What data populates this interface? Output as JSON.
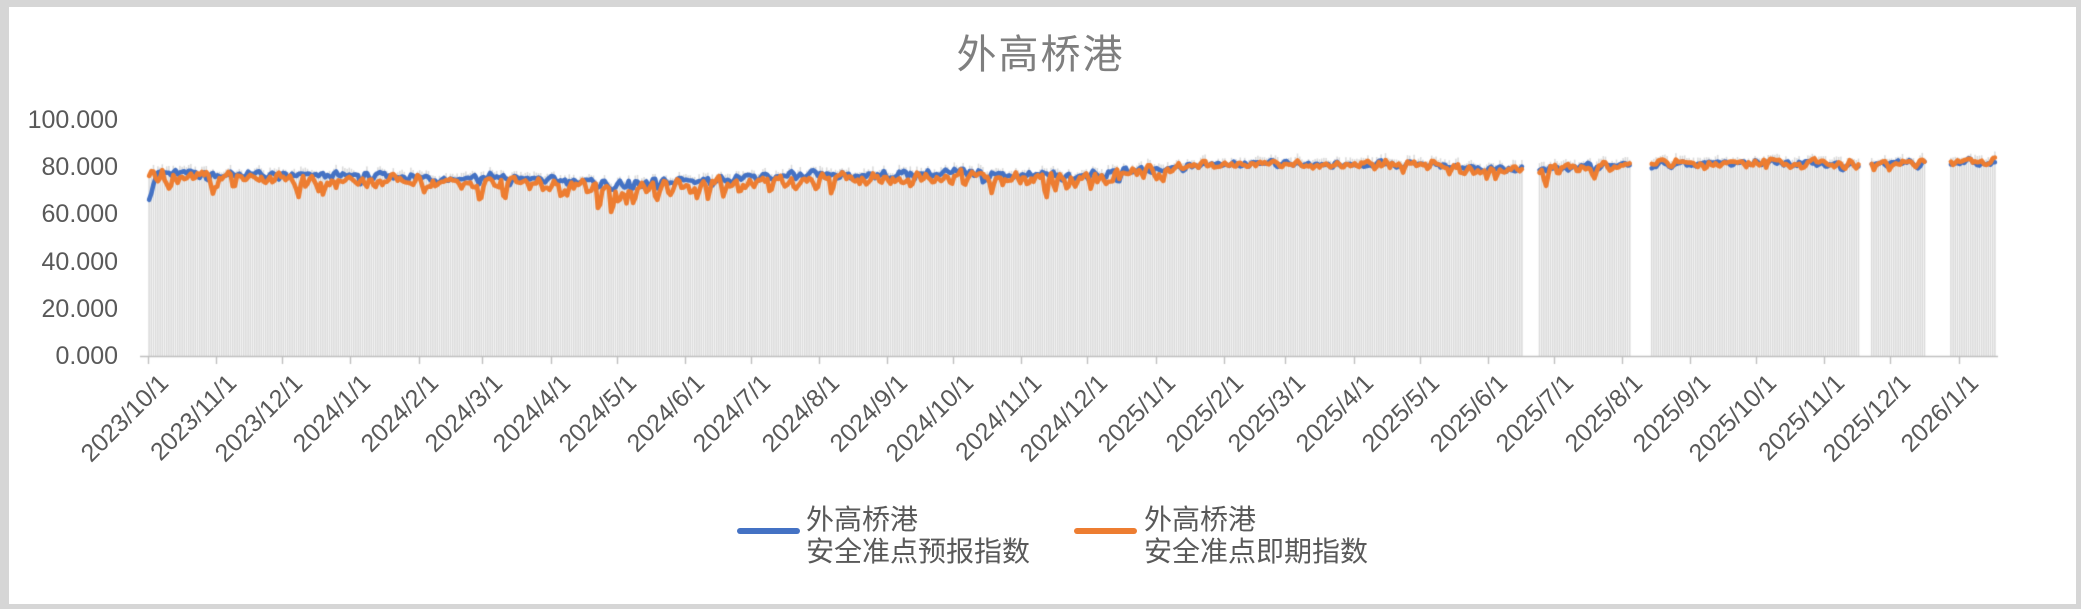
{
  "chart": {
    "title": "外高桥港",
    "legend": [
      {
        "line1": "外高桥港",
        "line2": "安全准点预报指数",
        "color": "#4472C4"
      },
      {
        "line1": "外高桥港",
        "line2": "安全准点即期指数",
        "color": "#ED7D31"
      }
    ]
  },
  "chart_data": {
    "type": "line",
    "title": "外高桥港",
    "xlabel": "",
    "ylabel": "",
    "ylim": [
      0,
      100
    ],
    "ytick_values": [
      0,
      20,
      40,
      60,
      80,
      100
    ],
    "ytick_labels": [
      "0.000",
      "20.000",
      "40.000",
      "60.000",
      "80.000",
      "100.000"
    ],
    "grid": false,
    "legend_position": "bottom",
    "x_start": "2023/10/1",
    "x_end": "2026/1/17",
    "x_resolution": "daily",
    "axis_color": "#BFBFBF",
    "label_color": "#595959",
    "background_bars": {
      "name": "daily-columns",
      "color": "#DADADA",
      "behavior": "light gray column per day rising to just above the line values"
    },
    "series": [
      {
        "name": "外高桥港 安全准点预报指数",
        "color": "#4472C4"
      },
      {
        "name": "外高桥港 安全准点即期指数",
        "color": "#ED7D31"
      }
    ],
    "months": [
      {
        "label": "2023/10/1",
        "days": 31,
        "forecast": 77.5,
        "spot": 77.0,
        "forecast_amp": 2.2,
        "spot_amp": 3.4,
        "forecast_dip": 5,
        "spot_dip": 9
      },
      {
        "label": "2023/11/1",
        "days": 30,
        "forecast": 77.0,
        "spot": 76.0,
        "forecast_amp": 2.2,
        "spot_amp": 3.4,
        "forecast_dip": 4,
        "spot_dip": 9
      },
      {
        "label": "2023/12/1",
        "days": 31,
        "forecast": 76.5,
        "spot": 75.0,
        "forecast_amp": 2.2,
        "spot_amp": 3.6,
        "forecast_dip": 4,
        "spot_dip": 10
      },
      {
        "label": "2024/1/1",
        "days": 31,
        "forecast": 76.5,
        "spot": 74.5,
        "forecast_amp": 2.2,
        "spot_amp": 3.6,
        "forecast_dip": 4,
        "spot_dip": 10
      },
      {
        "label": "2024/2/1",
        "days": 29,
        "forecast": 75.5,
        "spot": 73.5,
        "forecast_amp": 2.3,
        "spot_amp": 3.8,
        "forecast_dip": 4,
        "spot_dip": 12
      },
      {
        "label": "2024/3/1",
        "days": 31,
        "forecast": 76.0,
        "spot": 74.5,
        "forecast_amp": 2.2,
        "spot_amp": 3.6,
        "forecast_dip": 4,
        "spot_dip": 11
      },
      {
        "label": "2024/4/1",
        "days": 30,
        "forecast": 74.5,
        "spot": 71.5,
        "forecast_amp": 2.4,
        "spot_amp": 3.8,
        "forecast_dip": 5,
        "spot_dip": 12
      },
      {
        "label": "2024/5/1",
        "days": 31,
        "forecast": 72.5,
        "spot": 70.0,
        "forecast_amp": 2.4,
        "spot_amp": 3.8,
        "forecast_dip": 5,
        "spot_dip": 11
      },
      {
        "label": "2024/6/1",
        "days": 30,
        "forecast": 74.5,
        "spot": 72.5,
        "forecast_amp": 2.2,
        "spot_amp": 3.5,
        "forecast_dip": 4,
        "spot_dip": 9
      },
      {
        "label": "2024/7/1",
        "days": 31,
        "forecast": 76.0,
        "spot": 74.0,
        "forecast_amp": 2.2,
        "spot_amp": 3.4,
        "forecast_dip": 4,
        "spot_dip": 9
      },
      {
        "label": "2024/8/1",
        "days": 31,
        "forecast": 76.5,
        "spot": 75.0,
        "forecast_amp": 2.2,
        "spot_amp": 3.4,
        "forecast_dip": 4,
        "spot_dip": 9
      },
      {
        "label": "2024/9/1",
        "days": 30,
        "forecast": 77.0,
        "spot": 75.5,
        "forecast_amp": 2.2,
        "spot_amp": 3.4,
        "forecast_dip": 4,
        "spot_dip": 10
      },
      {
        "label": "2024/10/1",
        "days": 31,
        "forecast": 77.5,
        "spot": 76.0,
        "forecast_amp": 2.2,
        "spot_amp": 3.4,
        "forecast_dip": 4,
        "spot_dip": 10
      },
      {
        "label": "2024/11/1",
        "days": 30,
        "forecast": 77.0,
        "spot": 75.0,
        "forecast_amp": 2.2,
        "spot_amp": 3.5,
        "forecast_dip": 4,
        "spot_dip": 10
      },
      {
        "label": "2024/12/1",
        "days": 31,
        "forecast": 76.0,
        "spot": 74.5,
        "forecast_amp": 2.6,
        "spot_amp": 3.6,
        "forecast_dip": 5,
        "spot_dip": 10
      },
      {
        "label": "2025/1/1",
        "days": 31,
        "forecast": 79.5,
        "spot": 79.5,
        "forecast_amp": 1.7,
        "spot_amp": 2.0,
        "forecast_dip": 3,
        "spot_dip": 5
      },
      {
        "label": "2025/2/1",
        "days": 28,
        "forecast": 81.5,
        "spot": 81.5,
        "forecast_amp": 1.4,
        "spot_amp": 1.7,
        "forecast_dip": 2,
        "spot_dip": 3
      },
      {
        "label": "2025/3/1",
        "days": 31,
        "forecast": 81.5,
        "spot": 81.5,
        "forecast_amp": 1.4,
        "spot_amp": 1.7,
        "forecast_dip": 2,
        "spot_dip": 3
      },
      {
        "label": "2025/4/1",
        "days": 30,
        "forecast": 81.0,
        "spot": 81.0,
        "forecast_amp": 1.5,
        "spot_amp": 1.8,
        "forecast_dip": 3,
        "spot_dip": 4
      },
      {
        "label": "2025/5/1",
        "days": 31,
        "forecast": 81.5,
        "spot": 81.5,
        "forecast_amp": 1.5,
        "spot_amp": 1.8,
        "forecast_dip": 3,
        "spot_dip": 6
      },
      {
        "label": "2025/6/1",
        "days": 30,
        "forecast": 79.0,
        "spot": 78.5,
        "forecast_amp": 1.8,
        "spot_amp": 2.2,
        "forecast_dip": 3,
        "spot_dip": 6
      },
      {
        "label": "2025/7/1",
        "days": 31,
        "forecast": 79.5,
        "spot": 79.0,
        "forecast_amp": 1.8,
        "spot_amp": 2.2,
        "forecast_dip": 4,
        "spot_dip": 6
      },
      {
        "label": "2025/8/1",
        "days": 31,
        "forecast": 81.0,
        "spot": 81.5,
        "forecast_amp": 1.5,
        "spot_amp": 1.8,
        "forecast_dip": 2,
        "spot_dip": 3
      },
      {
        "label": "2025/9/1",
        "days": 30,
        "forecast": 81.5,
        "spot": 82.0,
        "forecast_amp": 1.4,
        "spot_amp": 1.6,
        "forecast_dip": 2,
        "spot_dip": 3
      },
      {
        "label": "2025/10/1",
        "days": 31,
        "forecast": 82.0,
        "spot": 82.0,
        "forecast_amp": 1.4,
        "spot_amp": 1.6,
        "forecast_dip": 2,
        "spot_dip": 4
      },
      {
        "label": "2025/11/1",
        "days": 30,
        "forecast": 81.0,
        "spot": 81.5,
        "forecast_amp": 1.5,
        "spot_amp": 1.8,
        "forecast_dip": 3,
        "spot_dip": 4
      },
      {
        "label": "2025/12/1",
        "days": 31,
        "forecast": 82.0,
        "spot": 82.0,
        "forecast_amp": 1.4,
        "spot_amp": 1.6,
        "forecast_dip": 2,
        "spot_dip": 3
      },
      {
        "label": "2026/1/1",
        "days": 17,
        "forecast": 82.0,
        "spot": 82.5,
        "forecast_amp": 1.4,
        "spot_amp": 1.6,
        "forecast_dip": 2,
        "spot_dip": 3
      }
    ],
    "gaps": [
      {
        "start": "2025/6/17",
        "end": "2025/6/23",
        "start_day": 625,
        "end_day": 631
      },
      {
        "start": "2025/8/5",
        "end": "2025/8/13",
        "start_day": 674,
        "end_day": 682
      },
      {
        "start": "2025/11/17",
        "end": "2025/11/21",
        "start_day": 778,
        "end_day": 782
      },
      {
        "start": "2025/12/17",
        "end": "2025/12/27",
        "start_day": 808,
        "end_day": 818
      }
    ]
  }
}
